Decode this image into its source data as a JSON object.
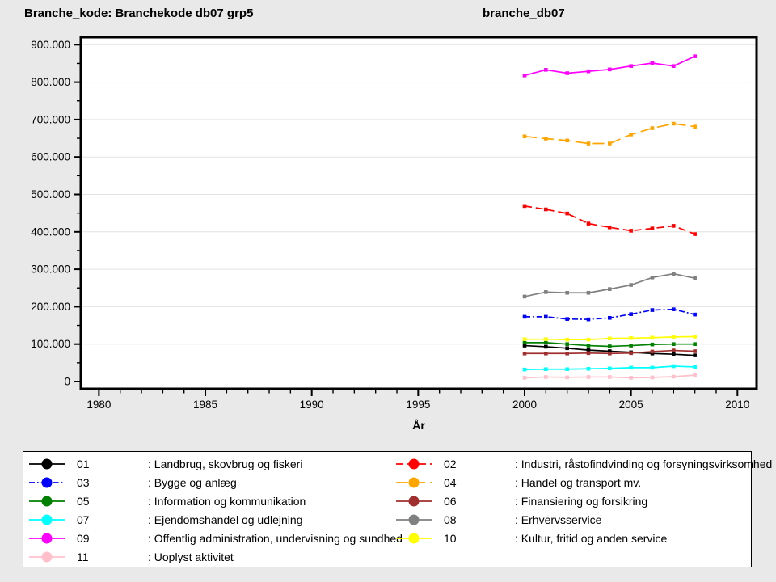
{
  "chart_data": {
    "type": "line",
    "title_left": "Branche_kode: Branchekode db07 grp5",
    "title_right": "branche_db07",
    "xlabel": "År",
    "ylabel": "",
    "grid": "horizontal-major-only",
    "x": [
      2000,
      2001,
      2002,
      2003,
      2004,
      2005,
      2006,
      2007,
      2008
    ],
    "x_axis": {
      "tick_min": 1980,
      "tick_max": 2010,
      "major_step": 5,
      "minor_step": 1,
      "tick_labels": [
        "1980",
        "1985",
        "1990",
        "1995",
        "2000",
        "2005",
        "2010"
      ]
    },
    "y_axis": {
      "min": 0,
      "max": 900000,
      "major_step": 100000,
      "minor_step": 50000,
      "tick_labels": [
        "0",
        "100.000",
        "200.000",
        "300.000",
        "400.000",
        "500.000",
        "600.000",
        "700.000",
        "800.000",
        "900.000"
      ]
    },
    "series": [
      {
        "code": "01",
        "label": "Landbrug, skovbrug og fiskeri",
        "color": "#000000",
        "line_style": "solid",
        "values": [
          96000,
          93000,
          89000,
          84000,
          81000,
          78000,
          75000,
          73000,
          70000
        ]
      },
      {
        "code": "02",
        "label": "Industri, råstofindvinding og forsyningsvirksomhed",
        "color": "#FF0000",
        "line_style": "dash",
        "values": [
          469000,
          460000,
          449000,
          422000,
          412000,
          403000,
          409000,
          416000,
          394000
        ]
      },
      {
        "code": "03",
        "label": "Bygge og anlæg",
        "color": "#0000FF",
        "line_style": "dashdot",
        "values": [
          173000,
          173000,
          167000,
          166000,
          170000,
          180000,
          191000,
          193000,
          179000
        ]
      },
      {
        "code": "04",
        "label": "Handel og transport mv.",
        "color": "#FFA500",
        "line_style": "longdash",
        "values": [
          655000,
          649000,
          644000,
          636000,
          636000,
          660000,
          677000,
          689000,
          681000
        ]
      },
      {
        "code": "05",
        "label": "Information og kommunikation",
        "color": "#008000",
        "line_style": "solid",
        "values": [
          104000,
          104000,
          100000,
          96000,
          94000,
          96000,
          99000,
          100000,
          100000
        ]
      },
      {
        "code": "06",
        "label": "Finansiering og forsikring",
        "color": "#A03030",
        "line_style": "solid",
        "values": [
          75000,
          75000,
          75000,
          76000,
          75000,
          76000,
          80000,
          83000,
          81000
        ]
      },
      {
        "code": "07",
        "label": "Ejendomshandel og udlejning",
        "color": "#00FFFF",
        "line_style": "solid",
        "values": [
          32000,
          33000,
          33000,
          34000,
          35000,
          37000,
          37000,
          41000,
          39000
        ]
      },
      {
        "code": "08",
        "label": "Erhvervsservice",
        "color": "#808080",
        "line_style": "solid",
        "values": [
          227000,
          239000,
          237000,
          237000,
          247000,
          258000,
          278000,
          288000,
          276000
        ]
      },
      {
        "code": "09",
        "label": "Offentlig administration, undervisning og sundhed",
        "color": "#FF00FF",
        "line_style": "solid",
        "values": [
          818000,
          833000,
          824000,
          829000,
          834000,
          843000,
          851000,
          843000,
          869000
        ]
      },
      {
        "code": "10",
        "label": "Kultur, fritid og anden service",
        "color": "#FFFF00",
        "line_style": "solid",
        "values": [
          113000,
          113000,
          112000,
          112000,
          115000,
          116000,
          117000,
          119000,
          120000
        ]
      },
      {
        "code": "11",
        "label": "Uoplyst aktivitet",
        "color": "#FFC0CB",
        "line_style": "solid",
        "values": [
          10000,
          12000,
          11000,
          12000,
          12000,
          10000,
          11000,
          13000,
          17000
        ]
      }
    ]
  },
  "legend": {
    "label_prefix": ": ",
    "left_column": [
      "01",
      "03",
      "05",
      "07",
      "09",
      "11"
    ],
    "right_column": [
      "02",
      "04",
      "06",
      "08",
      "10"
    ]
  },
  "style_colors": {
    "page_background": "#E9E9E9",
    "plot_background": "#FFFFFF",
    "gridline": "#E3E3E3",
    "frame": "#000000",
    "text": "#000000"
  }
}
